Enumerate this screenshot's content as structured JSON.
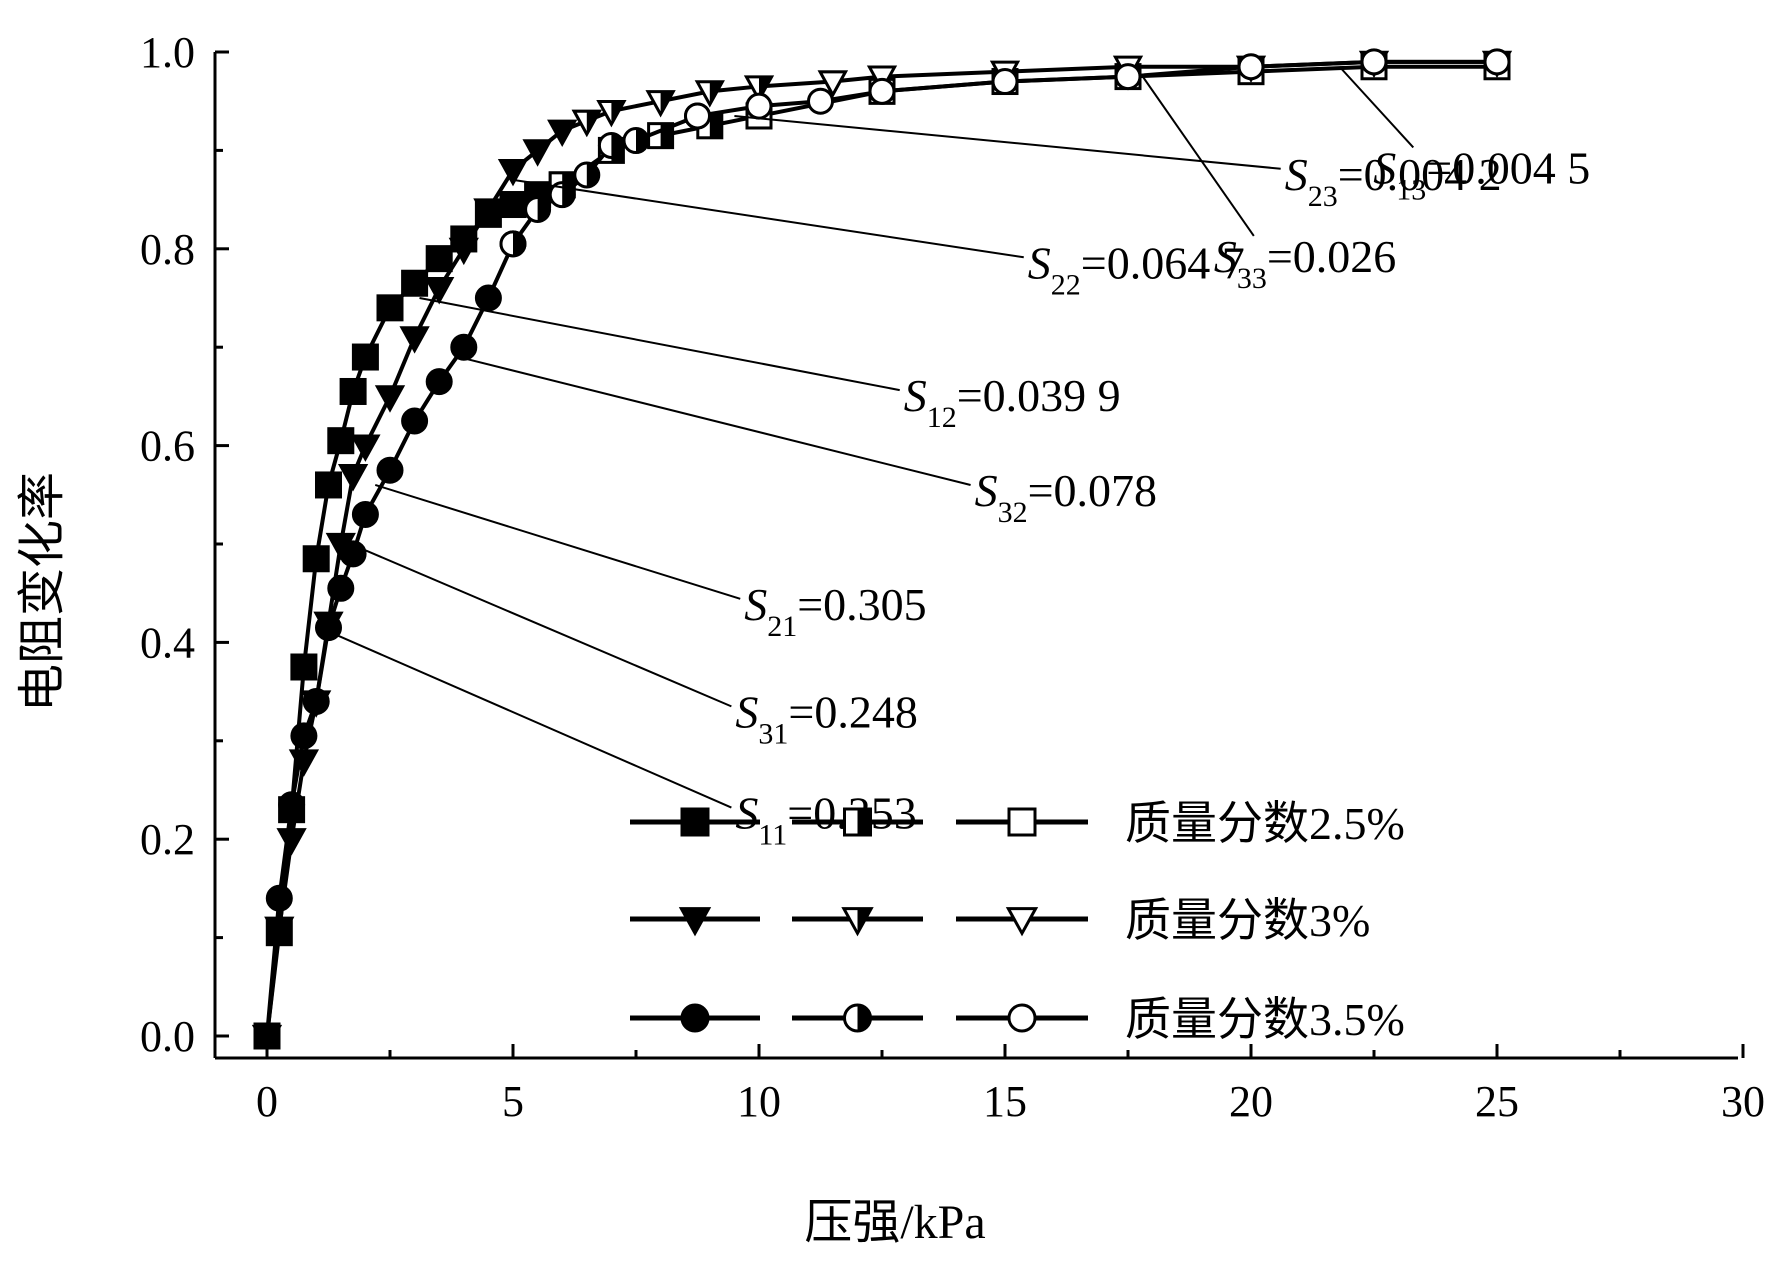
{
  "chart_data": {
    "type": "line",
    "title": "",
    "xlabel": "压强/kPa",
    "ylabel": "电阻变化率",
    "xlim": [
      -1,
      30
    ],
    "ylim": [
      -0.04,
      1.0
    ],
    "xticks": [
      0,
      5,
      10,
      15,
      20,
      25,
      30
    ],
    "yticks": [
      0.0,
      0.2,
      0.4,
      0.6,
      0.8,
      1.0
    ],
    "xtick_labels": [
      "0",
      "5",
      "10",
      "15",
      "20",
      "25",
      "30"
    ],
    "ytick_labels": [
      "0.0",
      "0.2",
      "0.4",
      "0.6",
      "0.8",
      "1.0"
    ],
    "grid": false,
    "legend_position": "bottom-right",
    "legend_groups": [
      {
        "label": "质量分数2.5%",
        "marker": "square"
      },
      {
        "label": "质量分数3%",
        "marker": "triangle-down"
      },
      {
        "label": "质量分数3.5%",
        "marker": "circle"
      }
    ],
    "series": [
      {
        "group": 0,
        "marker": "square",
        "fill": "full",
        "x": [
          0,
          0.25,
          0.5,
          0.75,
          1.0,
          1.25,
          1.5,
          1.75,
          2.0,
          2.5,
          3.0,
          3.5,
          4.0,
          4.5,
          5.0,
          5.5,
          6.0
        ],
        "y": [
          0.0,
          0.105,
          0.23,
          0.375,
          0.485,
          0.56,
          0.605,
          0.655,
          0.69,
          0.74,
          0.765,
          0.79,
          0.81,
          0.835,
          0.845,
          0.855,
          0.865
        ]
      },
      {
        "group": 0,
        "marker": "square",
        "fill": "half",
        "x": [
          6.0,
          7.0,
          8.0,
          9.0,
          10.0
        ],
        "y": [
          0.865,
          0.9,
          0.915,
          0.925,
          0.935
        ]
      },
      {
        "group": 0,
        "marker": "square",
        "fill": "none",
        "x": [
          10.0,
          12.5,
          15.0,
          17.5,
          20.0,
          22.5,
          25.0
        ],
        "y": [
          0.935,
          0.96,
          0.97,
          0.975,
          0.98,
          0.985,
          0.985
        ]
      },
      {
        "group": 1,
        "marker": "triangle-down",
        "fill": "full",
        "x": [
          0,
          0.25,
          0.5,
          0.75,
          1.0,
          1.25,
          1.5,
          1.75,
          2.0,
          2.5,
          3.0,
          3.5,
          4.0,
          4.5,
          5.0,
          5.5,
          6.0,
          6.5
        ],
        "y": [
          0.0,
          0.11,
          0.2,
          0.28,
          0.34,
          0.42,
          0.5,
          0.57,
          0.6,
          0.65,
          0.71,
          0.76,
          0.8,
          0.84,
          0.88,
          0.9,
          0.92,
          0.93
        ]
      },
      {
        "group": 1,
        "marker": "triangle-down",
        "fill": "half",
        "x": [
          6.5,
          7.0,
          8.0,
          9.0,
          10.0,
          11.5
        ],
        "y": [
          0.93,
          0.94,
          0.95,
          0.96,
          0.965,
          0.97
        ]
      },
      {
        "group": 1,
        "marker": "triangle-down",
        "fill": "none",
        "x": [
          11.5,
          12.5,
          15.0,
          17.5,
          20.0,
          22.5,
          25.0
        ],
        "y": [
          0.97,
          0.975,
          0.98,
          0.985,
          0.985,
          0.99,
          0.99
        ]
      },
      {
        "group": 2,
        "marker": "circle",
        "fill": "full",
        "x": [
          0,
          0.25,
          0.5,
          0.75,
          1.0,
          1.25,
          1.5,
          1.75,
          2.0,
          2.5,
          3.0,
          3.5,
          4.0,
          4.5,
          5.0
        ],
        "y": [
          0.0,
          0.14,
          0.235,
          0.305,
          0.34,
          0.415,
          0.455,
          0.49,
          0.53,
          0.575,
          0.625,
          0.665,
          0.7,
          0.75,
          0.805
        ]
      },
      {
        "group": 2,
        "marker": "circle",
        "fill": "half",
        "x": [
          5.0,
          5.5,
          6.0,
          6.5,
          7.0,
          7.5,
          8.75
        ],
        "y": [
          0.805,
          0.84,
          0.855,
          0.875,
          0.905,
          0.91,
          0.935
        ]
      },
      {
        "group": 2,
        "marker": "circle",
        "fill": "none",
        "x": [
          8.75,
          10.0,
          11.25,
          12.5,
          15.0,
          17.5,
          20.0,
          22.5,
          25.0
        ],
        "y": [
          0.935,
          0.945,
          0.95,
          0.96,
          0.97,
          0.975,
          0.985,
          0.99,
          0.99
        ]
      }
    ],
    "annotations": [
      {
        "sym": "S",
        "sub": "11",
        "value": "=0.353",
        "target": [
          1.3,
          0.41
        ],
        "anchor": "left",
        "at": [
          0.415,
          0.655
        ]
      },
      {
        "sym": "S",
        "sub": "31",
        "value": "=0.248",
        "target": [
          1.7,
          0.5
        ],
        "anchor": "left",
        "at": [
          0.415,
          0.575
        ]
      },
      {
        "sym": "S",
        "sub": "21",
        "value": "=0.305",
        "target": [
          2.2,
          0.56
        ],
        "anchor": "left",
        "at": [
          0.42,
          0.49
        ]
      },
      {
        "sym": "S",
        "sub": "32",
        "value": "=0.078",
        "target": [
          3.9,
          0.69
        ],
        "anchor": "left",
        "at": [
          0.55,
          0.4
        ]
      },
      {
        "sym": "S",
        "sub": "12",
        "value": "=0.039 9",
        "target": [
          3.1,
          0.75
        ],
        "anchor": "left",
        "at": [
          0.51,
          0.325
        ]
      },
      {
        "sym": "S",
        "sub": "22",
        "value": "=0.064 7",
        "target": [
          5.0,
          0.87
        ],
        "anchor": "left",
        "at": [
          0.58,
          0.22
        ]
      },
      {
        "sym": "S",
        "sub": "23",
        "value": "=0.004 2",
        "target": [
          9.5,
          0.935
        ],
        "anchor": "left",
        "at": [
          0.725,
          0.15
        ]
      },
      {
        "sym": "S",
        "sub": "33",
        "value": "=0.026",
        "target": [
          17.8,
          0.975
        ],
        "anchor": "middle",
        "at": [
          0.685,
          0.215
        ]
      },
      {
        "sym": "S",
        "sub": "13",
        "value": "=0.004 5",
        "target": [
          21.8,
          0.985
        ],
        "anchor": "middle",
        "at": [
          0.775,
          0.145
        ]
      }
    ]
  }
}
